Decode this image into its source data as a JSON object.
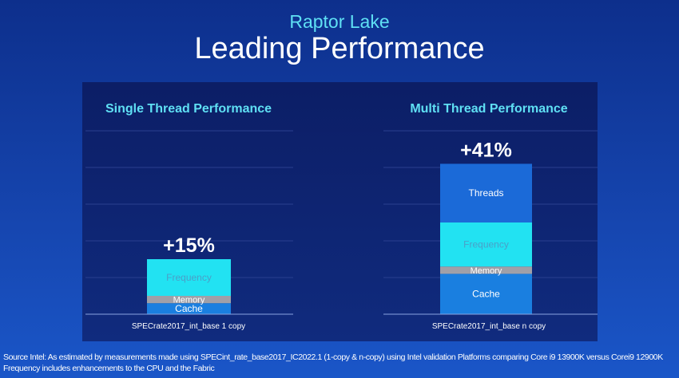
{
  "header": {
    "subtitle": "Raptor Lake",
    "title": "Leading Performance"
  },
  "chart_data": [
    {
      "type": "bar",
      "stacked": true,
      "title": "Single Thread Performance",
      "category": "SPECrate2017_int_base 1 copy",
      "total_label": "+15%",
      "series": [
        {
          "name": "Cache",
          "value": 3
        },
        {
          "name": "Memory",
          "value": 2
        },
        {
          "name": "Frequency",
          "value": 10
        }
      ],
      "grid": true
    },
    {
      "type": "bar",
      "stacked": true,
      "title": "Multi Thread Performance",
      "category": "SPECrate2017_int_base n copy",
      "total_label": "+41%",
      "series": [
        {
          "name": "Cache",
          "value": 11
        },
        {
          "name": "Memory",
          "value": 2
        },
        {
          "name": "Frequency",
          "value": 12
        },
        {
          "name": "Threads",
          "value": 16
        }
      ],
      "grid": true
    }
  ],
  "colors": {
    "Cache": "#1a7fe0",
    "Memory": "#a0a0a8",
    "Frequency": "#22e2f2",
    "Threads": "#1b6ad8",
    "title": "#5fe0f4"
  },
  "footnote": {
    "line1": "Source Intel: As estimated by measurements made using  SPECint_rate_base2017_IC2022.1 (1-copy & n-copy) using Intel validation Platforms comparing Core i9 13900K versus Corei9 12900K",
    "line2": "Frequency includes enhancements to the CPU and the Fabric"
  }
}
